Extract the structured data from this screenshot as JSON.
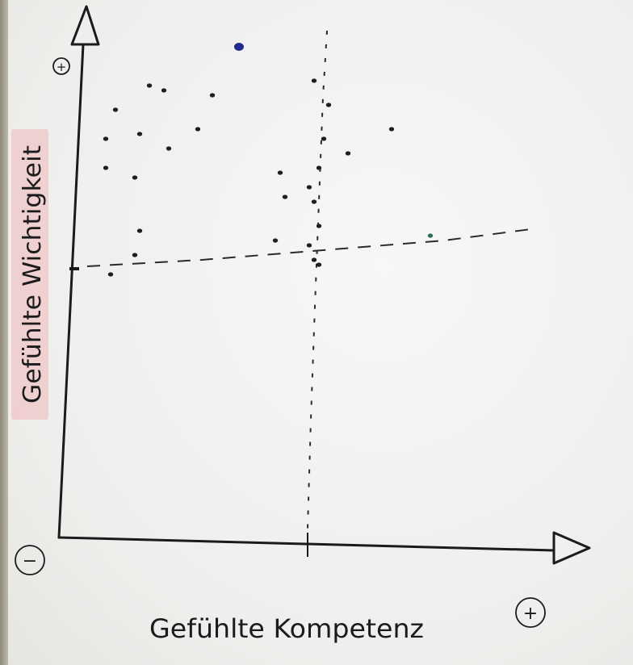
{
  "chart_data": {
    "type": "scatter",
    "xlabel": "Gefühlte Kompetenz",
    "ylabel": "Gefühlte Wichtigkeit",
    "x_max_marker": "+",
    "y_max_marker": "+",
    "origin_marker": "−",
    "xlim": [
      0,
      10
    ],
    "ylim": [
      0,
      10
    ],
    "grid": false,
    "x_threshold": 5,
    "y_threshold": 5,
    "points": [
      {
        "x": 3.35,
        "y": 9.7,
        "color": "#1f2a8c"
      },
      {
        "x": 4.9,
        "y": 9.0
      },
      {
        "x": 5.2,
        "y": 8.5
      },
      {
        "x": 0.8,
        "y": 8.4
      },
      {
        "x": 1.5,
        "y": 8.9
      },
      {
        "x": 1.8,
        "y": 8.8
      },
      {
        "x": 2.8,
        "y": 8.7
      },
      {
        "x": 2.5,
        "y": 8.0
      },
      {
        "x": 0.6,
        "y": 7.8
      },
      {
        "x": 1.3,
        "y": 7.9
      },
      {
        "x": 1.9,
        "y": 7.6
      },
      {
        "x": 5.1,
        "y": 7.8
      },
      {
        "x": 5.6,
        "y": 7.5
      },
      {
        "x": 6.5,
        "y": 8.0
      },
      {
        "x": 0.6,
        "y": 7.2
      },
      {
        "x": 1.2,
        "y": 7.0
      },
      {
        "x": 4.2,
        "y": 7.1
      },
      {
        "x": 5.0,
        "y": 7.2
      },
      {
        "x": 4.8,
        "y": 6.8
      },
      {
        "x": 4.3,
        "y": 6.6
      },
      {
        "x": 4.9,
        "y": 6.5
      },
      {
        "x": 5.0,
        "y": 6.0
      },
      {
        "x": 1.3,
        "y": 5.9
      },
      {
        "x": 4.1,
        "y": 5.7
      },
      {
        "x": 4.8,
        "y": 5.6
      },
      {
        "x": 7.3,
        "y": 5.8,
        "color": "#2f6b5a"
      },
      {
        "x": 1.2,
        "y": 5.4
      },
      {
        "x": 4.9,
        "y": 5.3
      },
      {
        "x": 0.7,
        "y": 5.0
      },
      {
        "x": 5.0,
        "y": 5.2
      }
    ]
  }
}
